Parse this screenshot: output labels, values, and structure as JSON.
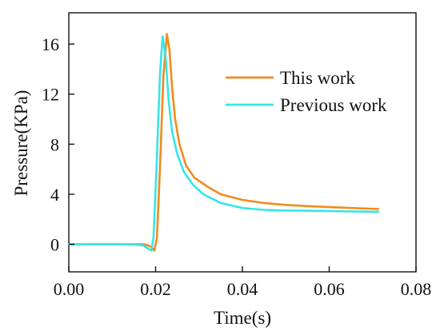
{
  "chart_data": {
    "type": "line",
    "title": "",
    "xlabel": "Time(s)",
    "ylabel": "Pressure(KPa)",
    "xlim": [
      0.0,
      0.08
    ],
    "ylim": [
      -2.2,
      18.5
    ],
    "xticks": [
      0.0,
      0.02,
      0.04,
      0.06,
      0.08
    ],
    "yticks": [
      0,
      4,
      8,
      12,
      16
    ],
    "xtick_labels": [
      "0.00",
      "0.02",
      "0.04",
      "0.06",
      "0.08"
    ],
    "ytick_labels": [
      "0",
      "4",
      "8",
      "12",
      "16"
    ],
    "grid": false,
    "legend_position": "upper-right",
    "series": [
      {
        "name": "This work",
        "color": "#f28b1c",
        "x": [
          0.0,
          0.005,
          0.01,
          0.015,
          0.0175,
          0.019,
          0.0197,
          0.0203,
          0.021,
          0.0218,
          0.0226,
          0.0232,
          0.0238,
          0.0245,
          0.0255,
          0.027,
          0.029,
          0.032,
          0.035,
          0.04,
          0.045,
          0.05,
          0.055,
          0.06,
          0.065,
          0.0713
        ],
        "y": [
          0.0,
          0.0,
          0.0,
          0.0,
          0.0,
          -0.2,
          -0.5,
          0.5,
          6.0,
          13.5,
          16.8,
          15.5,
          12.5,
          10.0,
          8.0,
          6.3,
          5.3,
          4.6,
          4.0,
          3.55,
          3.3,
          3.15,
          3.05,
          2.98,
          2.9,
          2.82
        ]
      },
      {
        "name": "Previous work",
        "color": "#35e6e6",
        "x": [
          0.0,
          0.005,
          0.01,
          0.015,
          0.0172,
          0.0185,
          0.019,
          0.0195,
          0.0202,
          0.021,
          0.0216,
          0.0223,
          0.023,
          0.0238,
          0.025,
          0.0265,
          0.0285,
          0.031,
          0.035,
          0.04,
          0.045,
          0.05,
          0.055,
          0.06,
          0.065,
          0.0713
        ],
        "y": [
          0.0,
          0.0,
          0.0,
          0.0,
          -0.1,
          -0.4,
          -0.5,
          0.5,
          6.0,
          13.5,
          16.6,
          15.0,
          11.5,
          9.0,
          7.2,
          5.8,
          4.8,
          4.0,
          3.3,
          2.9,
          2.75,
          2.7,
          2.68,
          2.66,
          2.63,
          2.6
        ]
      }
    ]
  }
}
